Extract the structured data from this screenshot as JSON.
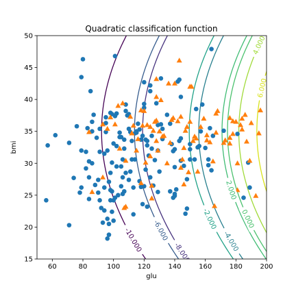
{
  "chart_data": {
    "type": "scatter",
    "title": "Quadratic classification function",
    "xlabel": "glu",
    "ylabel": "bmi",
    "xlim": [
      50,
      200
    ],
    "ylim": [
      15,
      50
    ],
    "xticks": [
      60,
      80,
      100,
      120,
      140,
      160,
      180,
      200
    ],
    "yticks": [
      15,
      20,
      25,
      30,
      35,
      40,
      45,
      50
    ],
    "grid": false,
    "colors": {
      "class0": "#1f77b4",
      "class1": "#ff7f0e"
    },
    "contour_levels": [
      {
        "level": -10000,
        "label": "-10.000",
        "color": "#440154",
        "label_at": [
          113,
          18
        ]
      },
      {
        "level": -8000,
        "label": "-8.000",
        "color": "#46327e",
        "label_at": [
          145,
          16
        ]
      },
      {
        "level": -6000,
        "label": "-6.000",
        "color": "#365c8d",
        "label_at": [
          131,
          19.5
        ]
      },
      {
        "level": -4000,
        "label": "-4.000",
        "color": "#277f8e",
        "label_at": [
          177,
          17.8
        ]
      },
      {
        "level": -2000,
        "label": "-2.000",
        "color": "#1fa187",
        "label_at": [
          163,
          21.3
        ]
      },
      {
        "level": 0,
        "label": "0.000",
        "color": "#4ac16d",
        "label_at": [
          188,
          21.3
        ]
      },
      {
        "level": 2000,
        "label": "2.000",
        "color": "#3fbc73",
        "label_at": [
          177,
          25.8
        ]
      },
      {
        "level": 4000,
        "label": "4.000",
        "color": "#a0da39",
        "label_at": [
          195,
          48.5
        ]
      },
      {
        "level": 6000,
        "label": "6.000",
        "color": "#d8e219",
        "label_at": [
          197,
          41.8
        ]
      }
    ],
    "series": [
      {
        "name": "class 0",
        "marker": "circle",
        "color": "#1f77b4",
        "points": [
          [
            56,
            24.2
          ],
          [
            57,
            32.8
          ],
          [
            62,
            34.4
          ],
          [
            71,
            20.3
          ],
          [
            71,
            33.2
          ],
          [
            74,
            27.7
          ],
          [
            76,
            35.8
          ],
          [
            78,
            25.4
          ],
          [
            79,
            26.2
          ],
          [
            79,
            32
          ],
          [
            79,
            43.5
          ],
          [
            80,
            46.3
          ],
          [
            82,
            31.8
          ],
          [
            82,
            29.2
          ],
          [
            83,
            35.5
          ],
          [
            84,
            30.3
          ],
          [
            84,
            24.4
          ],
          [
            84,
            27.8
          ],
          [
            85,
            41.3
          ],
          [
            86,
            30
          ],
          [
            86,
            35
          ],
          [
            86,
            36.5
          ],
          [
            87,
            37.6
          ],
          [
            88,
            26.6
          ],
          [
            89,
            34
          ],
          [
            90,
            25.4
          ],
          [
            90,
            27.4
          ],
          [
            91,
            31.8
          ],
          [
            91,
            35.4
          ],
          [
            91,
            24.2
          ],
          [
            92,
            23
          ],
          [
            93,
            20.7
          ],
          [
            94,
            22.6
          ],
          [
            94,
            26.2
          ],
          [
            94,
            31.5
          ],
          [
            95,
            37.2
          ],
          [
            95,
            34.9
          ],
          [
            95,
            36.3
          ],
          [
            96,
            21.3
          ],
          [
            96,
            32
          ],
          [
            96,
            18.2
          ],
          [
            97,
            18.8
          ],
          [
            97,
            20.5
          ],
          [
            97,
            27.1
          ],
          [
            98,
            24.2
          ],
          [
            98,
            28.5
          ],
          [
            98,
            25.8
          ],
          [
            98,
            37.9
          ],
          [
            99,
            37.7
          ],
          [
            99,
            25.6
          ],
          [
            99,
            22.4
          ],
          [
            99,
            30.1
          ],
          [
            100,
            24.2
          ],
          [
            100,
            33.1
          ],
          [
            100,
            21
          ],
          [
            101,
            24.6
          ],
          [
            101,
            37.4
          ],
          [
            101,
            46.8
          ],
          [
            102,
            29.5
          ],
          [
            102,
            37.8
          ],
          [
            102,
            32.7
          ],
          [
            103,
            25
          ],
          [
            104,
            34.8
          ],
          [
            104,
            34.1
          ],
          [
            105,
            26.4
          ],
          [
            105,
            29.5
          ],
          [
            105,
            34.1
          ],
          [
            106,
            30.6
          ],
          [
            106,
            27.8
          ],
          [
            106,
            25.2
          ],
          [
            107,
            25.6
          ],
          [
            107,
            33.7
          ],
          [
            107,
            32.3
          ],
          [
            108,
            28.5
          ],
          [
            108,
            39.2
          ],
          [
            108,
            38.2
          ],
          [
            109,
            37.5
          ],
          [
            110,
            27.4
          ],
          [
            110,
            37.7
          ],
          [
            110,
            35.4
          ],
          [
            111,
            34.9
          ],
          [
            111,
            28.7
          ],
          [
            112,
            30.6
          ],
          [
            112,
            33.5
          ],
          [
            113,
            26.2
          ],
          [
            113,
            22
          ],
          [
            114,
            30.6
          ],
          [
            114,
            34.7
          ],
          [
            115,
            34.8
          ],
          [
            115,
            35
          ],
          [
            116,
            36.2
          ],
          [
            117,
            27.2
          ],
          [
            117,
            35.3
          ],
          [
            118,
            26.3
          ],
          [
            118,
            33.7
          ],
          [
            119,
            34.3
          ],
          [
            119,
            23.6
          ],
          [
            120,
            38.7
          ],
          [
            120,
            39.3
          ],
          [
            120,
            26.4
          ],
          [
            120,
            42.7
          ],
          [
            121,
            33.7
          ],
          [
            121,
            29
          ],
          [
            122,
            23.2
          ],
          [
            122,
            33.5
          ],
          [
            122,
            32.8
          ],
          [
            123,
            31.2
          ],
          [
            124,
            41.3
          ],
          [
            124,
            27.8
          ],
          [
            124,
            42.2
          ],
          [
            125,
            32.3
          ],
          [
            125,
            34.3
          ],
          [
            126,
            26.5
          ],
          [
            127,
            30.5
          ],
          [
            128,
            39.4
          ],
          [
            129,
            25.5
          ],
          [
            129,
            32
          ],
          [
            129,
            36
          ],
          [
            130,
            28.7
          ],
          [
            131,
            36.1
          ],
          [
            131,
            43.3
          ],
          [
            132,
            35.4
          ],
          [
            132,
            33.8
          ],
          [
            135,
            37.6
          ],
          [
            137,
            25.6
          ],
          [
            137,
            36.2
          ],
          [
            138,
            33
          ],
          [
            139,
            24.6
          ],
          [
            139,
            31.9
          ],
          [
            140,
            25.2
          ],
          [
            140,
            29.4
          ],
          [
            140,
            32.2
          ],
          [
            140,
            24.9
          ],
          [
            141,
            25.9
          ],
          [
            142,
            42.8
          ],
          [
            143,
            43.1
          ],
          [
            143,
            33.5
          ],
          [
            144,
            33.9
          ],
          [
            144,
            40.4
          ],
          [
            144,
            30.4
          ],
          [
            146,
            29.6
          ],
          [
            147,
            22.1
          ],
          [
            148,
            22.9
          ],
          [
            148,
            27.5
          ],
          [
            150,
            33
          ],
          [
            150,
            30.6
          ],
          [
            150,
            32.2
          ],
          [
            153,
            30.6
          ],
          [
            154,
            38.5
          ],
          [
            155,
            32.5
          ],
          [
            156,
            32.7
          ],
          [
            157,
            35
          ],
          [
            158,
            39.2
          ],
          [
            160,
            32.4
          ],
          [
            162,
            30.6
          ],
          [
            162,
            29.7
          ],
          [
            163,
            35.5
          ],
          [
            164,
            28.9
          ],
          [
            164,
            47.9
          ],
          [
            165,
            34.3
          ],
          [
            172,
            35.1
          ],
          [
            181,
            34.6
          ],
          [
            185,
            24.6
          ],
          [
            188,
            30.1
          ],
          [
            189,
            26.2
          ]
        ]
      },
      {
        "name": "class 1",
        "marker": "triangle",
        "color": "#ff7f0e",
        "points": [
          [
            84,
            34.9
          ],
          [
            86,
            25.5
          ],
          [
            93,
            36.1
          ],
          [
            93,
            27.8
          ],
          [
            96,
            35.4
          ],
          [
            98,
            37.2
          ],
          [
            101,
            36.1
          ],
          [
            103,
            39
          ],
          [
            104,
            32.3
          ],
          [
            106,
            39.4
          ],
          [
            107,
            23
          ],
          [
            108,
            30.4
          ],
          [
            108,
            23.2
          ],
          [
            111,
            37.3
          ],
          [
            112,
            34.7
          ],
          [
            113,
            35.9
          ],
          [
            115,
            32
          ],
          [
            116,
            33.8
          ],
          [
            118,
            26.9
          ],
          [
            118,
            38.3
          ],
          [
            119,
            35.9
          ],
          [
            120,
            38.2
          ],
          [
            121,
            30.1
          ],
          [
            122,
            36
          ],
          [
            124,
            35.7
          ],
          [
            124,
            31.1
          ],
          [
            125,
            26.5
          ],
          [
            125,
            24.5
          ],
          [
            126,
            35.1
          ],
          [
            127,
            36.5
          ],
          [
            128,
            40.4
          ],
          [
            128,
            36.7
          ],
          [
            128,
            33.5
          ],
          [
            128,
            43.2
          ],
          [
            129,
            32
          ],
          [
            130,
            35
          ],
          [
            131,
            39.9
          ],
          [
            132,
            34.2
          ],
          [
            133,
            34.3
          ],
          [
            135,
            30
          ],
          [
            136,
            42.5
          ],
          [
            137,
            33.2
          ],
          [
            138,
            36.8
          ],
          [
            139,
            37.1
          ],
          [
            140,
            42.5
          ],
          [
            142,
            36.6
          ],
          [
            143,
            46.1
          ],
          [
            144,
            37.3
          ],
          [
            144,
            29.3
          ],
          [
            145,
            30.6
          ],
          [
            146,
            32.4
          ],
          [
            146,
            26.7
          ],
          [
            147,
            35.1
          ],
          [
            148,
            35.7
          ],
          [
            149,
            28.6
          ],
          [
            150,
            36.5
          ],
          [
            150,
            42
          ],
          [
            151,
            42
          ],
          [
            152,
            33.5
          ],
          [
            153,
            34.2
          ],
          [
            154,
            33.9
          ],
          [
            155,
            28.7
          ],
          [
            157,
            35.7
          ],
          [
            159,
            37
          ],
          [
            161,
            34.4
          ],
          [
            161,
            33.6
          ],
          [
            163,
            33.3
          ],
          [
            165,
            30.3
          ],
          [
            166,
            23.3
          ],
          [
            167,
            34.8
          ],
          [
            167,
            37.8
          ],
          [
            168,
            38.2
          ],
          [
            172,
            33.2
          ],
          [
            173,
            33.6
          ],
          [
            176,
            34
          ],
          [
            176,
            37.1
          ],
          [
            176,
            33.1
          ],
          [
            178,
            36.6
          ],
          [
            178,
            34.6
          ],
          [
            180,
            36.5
          ],
          [
            181,
            30
          ],
          [
            181,
            25.8
          ],
          [
            183,
            36
          ],
          [
            184,
            35.3
          ],
          [
            184,
            37
          ],
          [
            186,
            37.6
          ],
          [
            187,
            33.4
          ],
          [
            189,
            30.4
          ],
          [
            190,
            36.3
          ],
          [
            193,
            24.9
          ],
          [
            195,
            34.7
          ],
          [
            196,
            38.3
          ],
          [
            197,
            41.5
          ],
          [
            197,
            43
          ],
          [
            198,
            42.9
          ],
          [
            199,
            42.9
          ]
        ]
      }
    ]
  }
}
